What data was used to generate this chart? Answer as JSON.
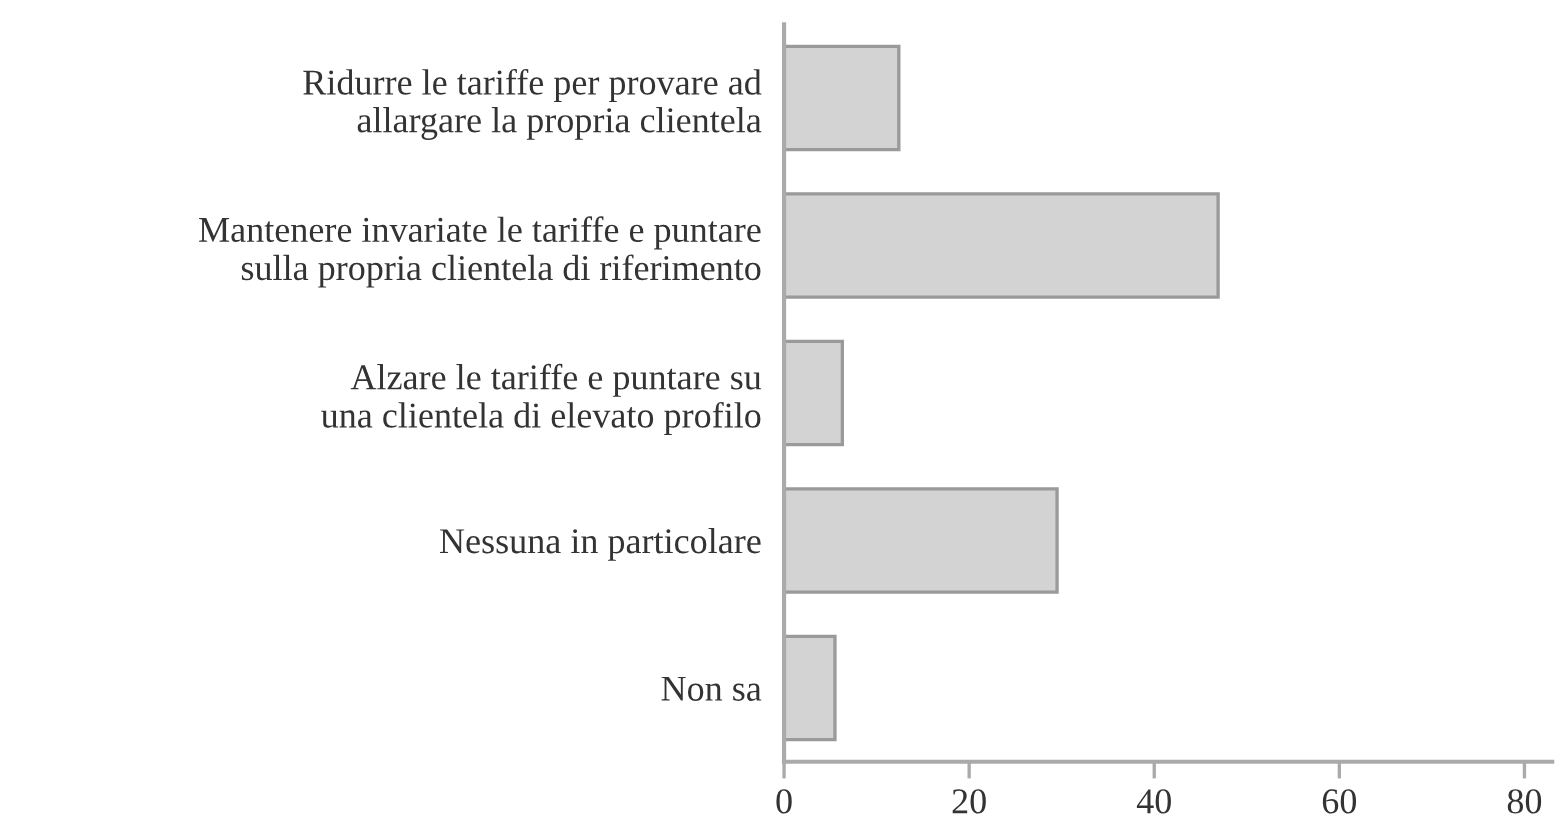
{
  "chart_data": {
    "type": "bar",
    "orientation": "horizontal",
    "categories": [
      "Ridurre le tariffe per provare ad\nallargare la propria clientela",
      "Mantenere invariate le tariffe e puntare\nsulla propria clientela di riferimento",
      "Alzare le tariffe e puntare su\nuna clientela di elevato profilo",
      "Nessuna in particolare",
      "Non sa"
    ],
    "values": [
      12.4,
      46.9,
      6.3,
      29.5,
      5.5
    ],
    "color": "#d3d3d3",
    "xlim": [
      0,
      83
    ],
    "xticks": [
      0,
      20,
      40,
      60,
      80
    ],
    "grid": false,
    "legend": false
  }
}
